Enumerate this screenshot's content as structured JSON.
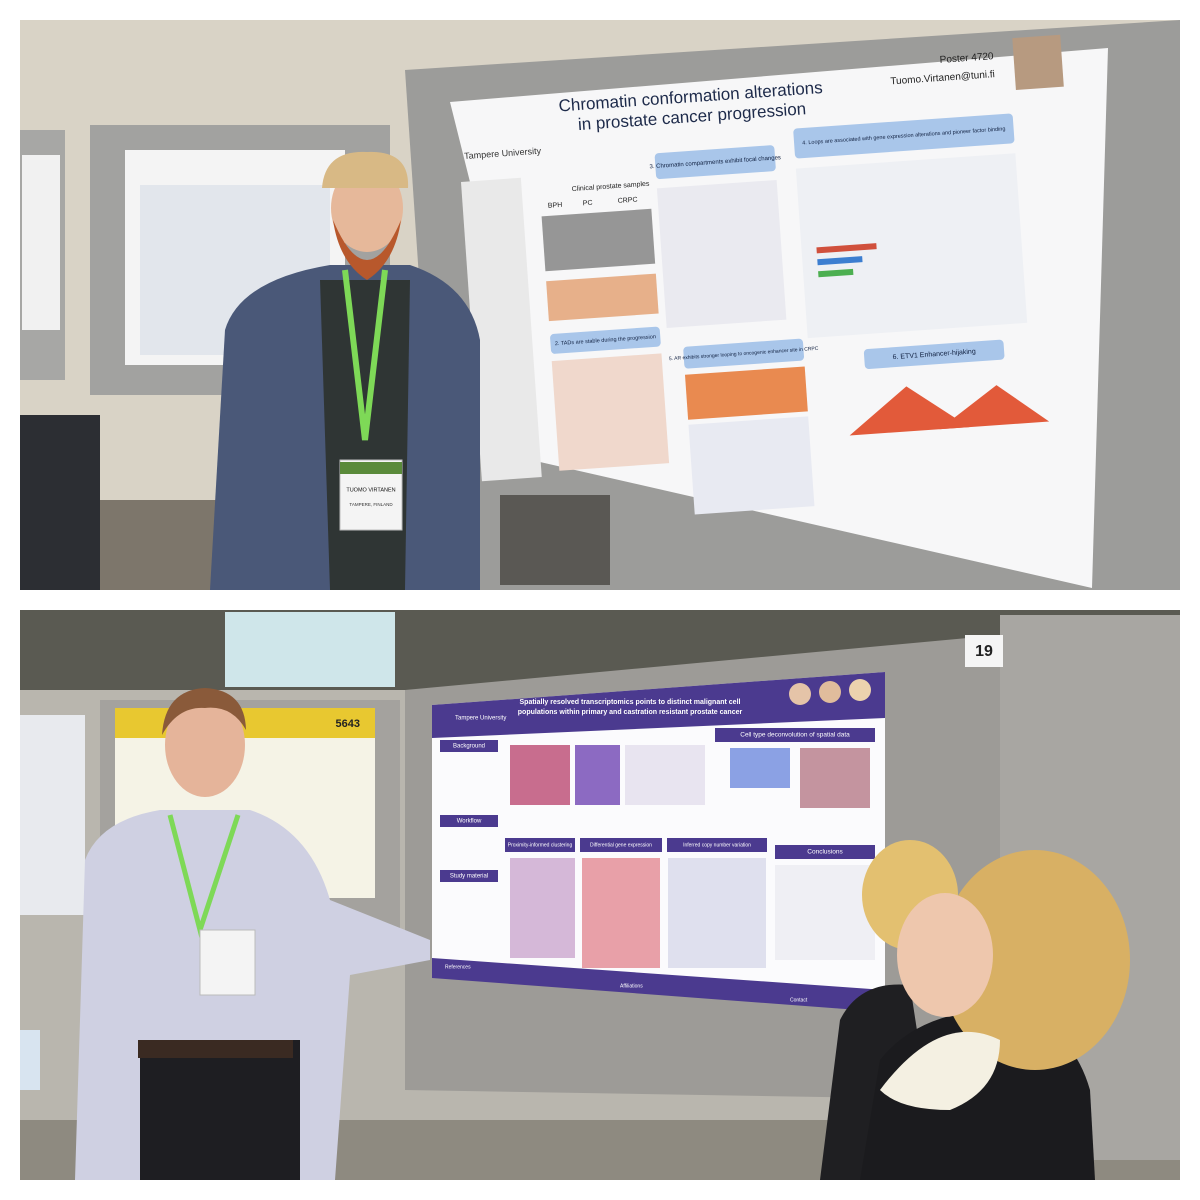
{
  "top_photo": {
    "poster": {
      "title_lines": [
        "Chromatin conformation alterations",
        "in prostate cancer progression"
      ],
      "poster_number": "Poster 4720",
      "email": "Tuomo.Virtanen@tuni.fi",
      "institution": "Tampere University",
      "sections": [
        "3. Chromatin compartments exhibit focal changes",
        "4. Loops are associated with gene expression alterations and pioneer factor binding",
        "2. TADs are stable during the progression",
        "5. AR exhibits stronger looping to oncogenic enhancer site in CRPC",
        "6. ETV1 Enhancer-hijaking"
      ],
      "cohort_caption": "Clinical prostate samples",
      "stages": [
        "BPH",
        "PC",
        "CRPC"
      ]
    },
    "badge": {
      "name": "TUOMO VIRTANEN",
      "location": "TAMPERE, FINLAND"
    }
  },
  "bottom_photo": {
    "board_number": "19",
    "neighbour_poster_number": "5643",
    "poster": {
      "title_lines": [
        "Spatially resolved transcriptomics points to distinct malignant cell",
        "populations within primary and castration resistant prostate cancer"
      ],
      "institution": "Tampere University",
      "sections": [
        "Background",
        "Workflow",
        "Study material",
        "Cell type deconvolution of spatial data",
        "Proximity-informed clustering",
        "Differential gene expression",
        "Inferred copy number variation",
        "Conclusions"
      ],
      "footer": [
        "References",
        "Affiliations",
        "Contact"
      ]
    }
  }
}
